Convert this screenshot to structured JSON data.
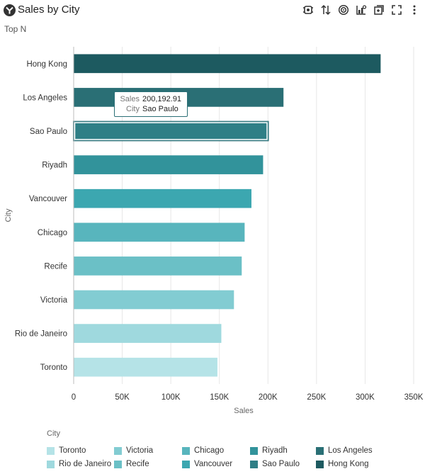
{
  "header": {
    "title": "Sales by City",
    "subtitle": "Top N",
    "toolbar": [
      "auto-insights-icon",
      "sort-icon",
      "target-icon",
      "chart-type-icon",
      "export-icon",
      "fullscreen-icon",
      "more-icon"
    ]
  },
  "tooltip": {
    "label1": "Sales",
    "value1": "200,192.91",
    "label2": "City",
    "value2": "Sao Paulo"
  },
  "legend": {
    "title": "City"
  },
  "chart_data": {
    "type": "bar",
    "orientation": "horizontal",
    "categories": [
      "Hong Kong",
      "Los Angeles",
      "Sao Paulo",
      "Riyadh",
      "Vancouver",
      "Chicago",
      "Recife",
      "Victoria",
      "Rio de Janeiro",
      "Toronto"
    ],
    "values": [
      316000,
      216000,
      200192.91,
      195000,
      183000,
      176000,
      173000,
      165000,
      152000,
      148000
    ],
    "colors": [
      "#1d5a60",
      "#2a6f75",
      "#2f7f86",
      "#32939b",
      "#3ca7b0",
      "#58b5bd",
      "#6bc0c6",
      "#82ccd2",
      "#9fd9de",
      "#b5e3e7"
    ],
    "xlabel": "Sales",
    "ylabel": "City",
    "xlim": [
      0,
      350000
    ],
    "xticks": [
      "0",
      "50K",
      "100K",
      "150K",
      "200K",
      "250K",
      "300K",
      "350K"
    ],
    "grid": true,
    "highlighted": "Sao Paulo",
    "legend_position": "bottom",
    "legend_order": [
      "Toronto",
      "Victoria",
      "Chicago",
      "Riyadh",
      "Los Angeles",
      "Rio de Janeiro",
      "Recife",
      "Vancouver",
      "Sao Paulo",
      "Hong Kong"
    ]
  }
}
